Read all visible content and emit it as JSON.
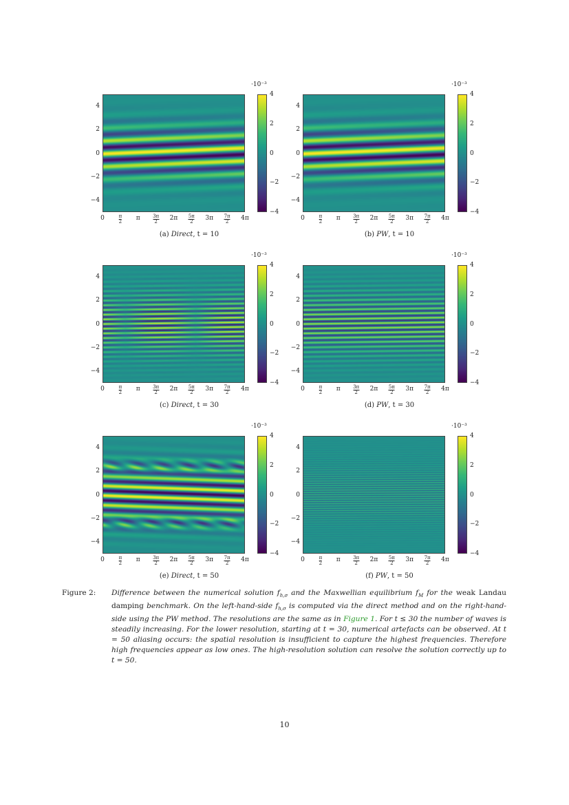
{
  "figure": {
    "panels": [
      {
        "label": "(a)",
        "method": "Direct",
        "time": "t = 10"
      },
      {
        "label": "(b)",
        "method": "PW",
        "time": "t = 10"
      },
      {
        "label": "(c)",
        "method": "Direct",
        "time": "t = 30"
      },
      {
        "label": "(d)",
        "method": "PW",
        "time": "t = 30"
      },
      {
        "label": "(e)",
        "method": "Direct",
        "time": "t = 50"
      },
      {
        "label": "(f)",
        "method": "PW",
        "time": "t = 50"
      }
    ],
    "y_ticks": [
      "4",
      "2",
      "0",
      "−2",
      "−4"
    ],
    "x_ticks": [
      {
        "text": "0"
      },
      {
        "num": "π",
        "den": "2"
      },
      {
        "text": "π"
      },
      {
        "num": "3π",
        "den": "2"
      },
      {
        "text": "2π"
      },
      {
        "num": "5π",
        "den": "2"
      },
      {
        "text": "3π"
      },
      {
        "num": "7π",
        "den": "2"
      },
      {
        "text": "4π"
      }
    ],
    "colorbar": {
      "ticks": [
        "4",
        "2",
        "0",
        "−2",
        "−4"
      ],
      "exponent": "·10⁻³",
      "colormap": "viridis",
      "range": [
        -4,
        4
      ]
    },
    "axis_ranges": {
      "x": [
        "0",
        "4π"
      ],
      "y": [
        -5,
        5
      ]
    }
  },
  "caption": {
    "label": "Figure 2:",
    "parts": [
      {
        "t": "Difference between the numerical solution f",
        "s": "i"
      },
      {
        "t": "h,σ",
        "s": "sub"
      },
      {
        "t": " and the Maxwellian equilibrium f",
        "s": "i"
      },
      {
        "t": "M",
        "s": "sub"
      },
      {
        "t": " for the ",
        "s": "i"
      },
      {
        "t": "weak Landau damping",
        "s": "up"
      },
      {
        "t": " benchmark. On the left-hand-side f",
        "s": "i"
      },
      {
        "t": "h,σ",
        "s": "sub"
      },
      {
        "t": " is computed via the direct method and on the right-hand-side using the PW method. The resolutions are the same as in ",
        "s": "i"
      },
      {
        "t": "Figure 1",
        "s": "ref"
      },
      {
        "t": ". For t ≤ 30 the number of waves is steadily increasing. For the lower resolution, starting at t = 30, numerical artefacts can be observed. At t = 50 aliasing occurs: the spatial resolution is insufficient to capture the highest frequencies. Therefore high frequencies appear as low ones. The high-resolution solution can resolve the solution correctly up to t = 50.",
        "s": "i"
      }
    ]
  },
  "page_number": "10"
}
